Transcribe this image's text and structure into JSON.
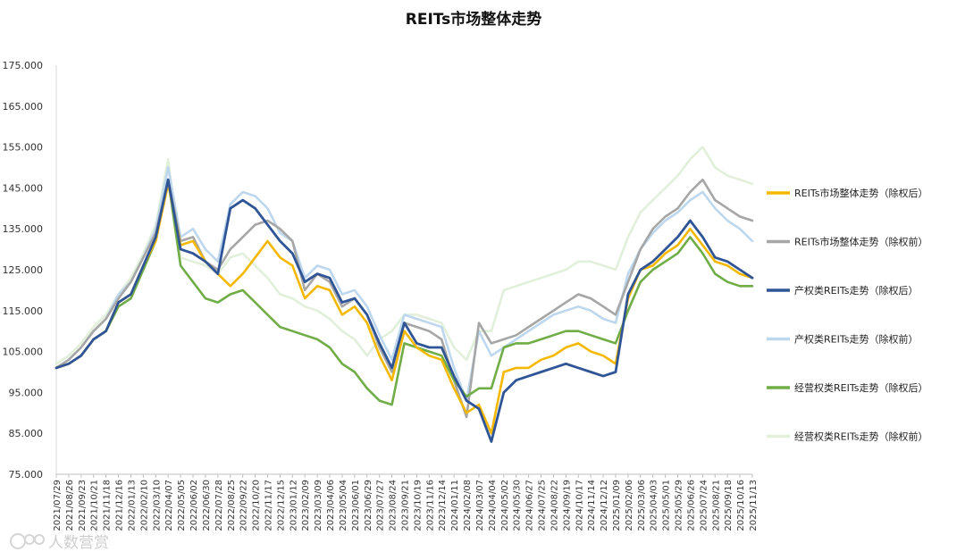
{
  "chart_data": {
    "type": "line",
    "title": "REITs市场整体走势",
    "xlabel": "",
    "ylabel": "",
    "ylim": [
      75,
      175
    ],
    "yticks": [
      75,
      85,
      95,
      105,
      115,
      125,
      135,
      145,
      155,
      165,
      175
    ],
    "y_tick_labels": [
      "75.000",
      "85.000",
      "95.000",
      "105.000",
      "115.000",
      "125.000",
      "135.000",
      "145.000",
      "155.000",
      "165.000",
      "175.000"
    ],
    "x_tick_labels": [
      "2021/07/29",
      "2021/08/26",
      "2021/09/23",
      "2021/10/21",
      "2021/11/18",
      "2021/12/16",
      "2022/01/13",
      "2022/02/10",
      "2022/03/10",
      "2022/04/07",
      "2022/05/05",
      "2022/06/02",
      "2022/06/30",
      "2022/07/28",
      "2022/08/25",
      "2022/09/22",
      "2022/10/20",
      "2022/11/17",
      "2022/12/15",
      "2023/01/12",
      "2023/02/09",
      "2023/03/09",
      "2023/04/06",
      "2023/05/04",
      "2023/06/01",
      "2023/06/29",
      "2023/07/27",
      "2023/08/24",
      "2023/09/21",
      "2023/10/19",
      "2023/11/16",
      "2023/12/14",
      "2024/01/11",
      "2024/02/08",
      "2024/03/07",
      "2024/04/04",
      "2024/05/02",
      "2024/05/30",
      "2024/06/27",
      "2024/07/25",
      "2024/08/22",
      "2024/09/19",
      "2024/10/17",
      "2024/11/14",
      "2024/12/12",
      "2025/01/09",
      "2025/02/06",
      "2025/03/06",
      "2025/04/03",
      "2025/05/01",
      "2025/05/29",
      "2025/06/26",
      "2025/07/24",
      "2025/08/21",
      "2025/09/18",
      "2025/10/16",
      "2025/11/13"
    ],
    "grid": false,
    "legend_position": "right",
    "series": [
      {
        "name": "REITs市场整体走势（除权后）",
        "color": "#f5b800",
        "width": 2.6,
        "values": [
          101,
          102,
          104,
          108,
          110,
          117,
          119,
          126,
          132,
          146,
          131,
          132,
          127,
          124,
          121,
          124,
          128,
          132,
          128,
          126,
          118,
          121,
          120,
          114,
          116,
          112,
          104,
          98,
          110,
          106,
          104,
          103,
          96,
          90,
          92,
          85,
          100,
          101,
          101,
          103,
          104,
          106,
          107,
          105,
          104,
          102,
          118,
          125,
          126,
          129,
          131,
          135,
          131,
          127,
          126,
          124,
          123
        ]
      },
      {
        "name": "REITs市场整体走势（除权前）",
        "color": "#a6a6a6",
        "width": 2.6,
        "values": [
          101,
          103,
          106,
          110,
          113,
          118,
          122,
          128,
          134,
          147,
          132,
          133,
          127,
          125,
          130,
          133,
          136,
          137,
          135,
          132,
          120,
          124,
          122,
          116,
          118,
          114,
          106,
          100,
          112,
          111,
          110,
          108,
          98,
          89,
          112,
          107,
          108,
          109,
          111,
          113,
          115,
          117,
          119,
          118,
          116,
          114,
          122,
          130,
          135,
          138,
          140,
          144,
          147,
          142,
          140,
          138,
          137
        ]
      },
      {
        "name": "产权类REITs走势（除权后）",
        "color": "#2f5597",
        "width": 2.8,
        "values": [
          101,
          102,
          104,
          108,
          110,
          117,
          119,
          126,
          133,
          147,
          130,
          129,
          127,
          124,
          140,
          142,
          140,
          136,
          132,
          129,
          122,
          124,
          123,
          117,
          118,
          114,
          107,
          101,
          112,
          107,
          106,
          106,
          99,
          93,
          91,
          83,
          95,
          98,
          99,
          100,
          101,
          102,
          101,
          100,
          99,
          100,
          119,
          125,
          127,
          130,
          133,
          137,
          133,
          128,
          127,
          125,
          123
        ]
      },
      {
        "name": "产权类REITs走势（除权前）",
        "color": "#bdd7ee",
        "width": 2.6,
        "values": [
          101,
          103,
          106,
          110,
          113,
          119,
          122,
          128,
          135,
          150,
          133,
          135,
          130,
          127,
          141,
          144,
          143,
          140,
          134,
          132,
          123,
          126,
          125,
          119,
          120,
          116,
          109,
          103,
          114,
          113,
          112,
          111,
          101,
          93,
          110,
          104,
          106,
          108,
          110,
          112,
          114,
          115,
          116,
          115,
          113,
          112,
          124,
          130,
          134,
          137,
          139,
          142,
          144,
          140,
          137,
          135,
          132
        ]
      },
      {
        "name": "经营权类REITs走势（除权后）",
        "color": "#70ad47",
        "width": 2.6,
        "values": [
          101,
          102,
          104,
          108,
          110,
          116,
          118,
          125,
          132,
          147,
          126,
          122,
          118,
          117,
          119,
          120,
          117,
          114,
          111,
          110,
          109,
          108,
          106,
          102,
          100,
          96,
          93,
          92,
          107,
          106,
          105,
          104,
          98,
          94,
          96,
          96,
          106,
          107,
          107,
          108,
          109,
          110,
          110,
          109,
          108,
          107,
          115,
          122,
          125,
          127,
          129,
          133,
          129,
          124,
          122,
          121,
          121
        ]
      },
      {
        "name": "经营权类REITs走势（除权前）",
        "color": "#e2efda",
        "width": 2.6,
        "values": [
          102,
          104,
          107,
          111,
          114,
          119,
          123,
          129,
          136,
          152,
          128,
          127,
          126,
          124,
          128,
          129,
          126,
          123,
          119,
          118,
          116,
          115,
          113,
          110,
          108,
          104,
          108,
          110,
          114,
          114,
          113,
          112,
          106,
          103,
          110,
          110,
          120,
          121,
          122,
          123,
          124,
          125,
          127,
          127,
          126,
          125,
          133,
          139,
          142,
          145,
          148,
          152,
          155,
          150,
          148,
          147,
          146
        ]
      }
    ]
  },
  "watermark": {
    "text": "人数营赏",
    "icon": "logo-mark-icon"
  }
}
